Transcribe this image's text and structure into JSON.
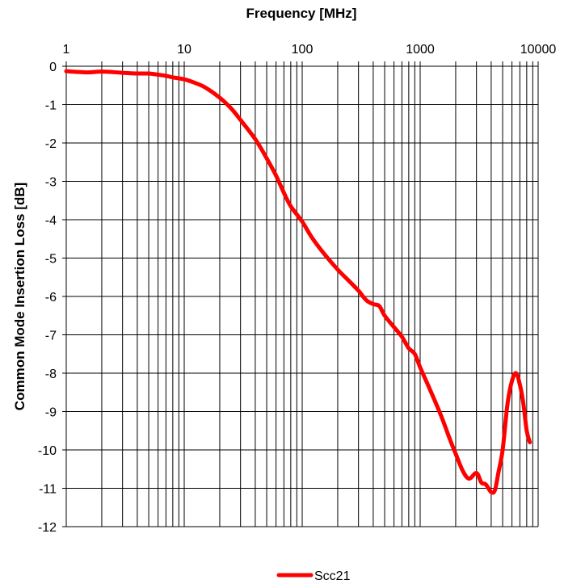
{
  "chart_data": {
    "type": "line",
    "xlabel": "Frequency [MHz]",
    "ylabel": "Common Mode Insertion Loss [dB]",
    "x_scale": "log",
    "x_axis_position": "top",
    "xlim": [
      1,
      10000
    ],
    "ylim": [
      -12,
      0
    ],
    "x_ticks": [
      1,
      10,
      100,
      1000,
      10000
    ],
    "x_tick_labels": [
      "1",
      "10",
      "100",
      "1000",
      "10000"
    ],
    "y_ticks": [
      0,
      -1,
      -2,
      -3,
      -4,
      -5,
      -6,
      -7,
      -8,
      -9,
      -10,
      -11,
      -12
    ],
    "y_tick_labels": [
      "0",
      "-1",
      "-2",
      "-3",
      "-4",
      "-5",
      "-6",
      "-7",
      "-8",
      "-9",
      "-10",
      "-11",
      "-12"
    ],
    "grid": true,
    "legend_position": "bottom-center",
    "series": [
      {
        "name": "Scc21",
        "color": "#ff0000",
        "x": [
          1,
          1.5,
          2,
          3,
          4,
          5,
          6,
          7,
          8,
          10,
          12,
          15,
          20,
          25,
          30,
          40,
          50,
          60,
          70,
          80,
          100,
          120,
          150,
          200,
          250,
          300,
          350,
          400,
          450,
          500,
          600,
          700,
          800,
          900,
          1000,
          1200,
          1500,
          1800,
          2000,
          2300,
          2600,
          3000,
          3300,
          3600,
          4000,
          4300,
          4600,
          5000,
          5500,
          6000,
          6500,
          7000,
          7500,
          8000,
          8500
        ],
        "y": [
          -0.13,
          -0.16,
          -0.14,
          -0.17,
          -0.19,
          -0.19,
          -0.22,
          -0.25,
          -0.29,
          -0.34,
          -0.42,
          -0.55,
          -0.82,
          -1.1,
          -1.4,
          -1.9,
          -2.4,
          -2.85,
          -3.3,
          -3.65,
          -4.05,
          -4.45,
          -4.85,
          -5.3,
          -5.6,
          -5.85,
          -6.1,
          -6.2,
          -6.25,
          -6.5,
          -6.8,
          -7.05,
          -7.35,
          -7.5,
          -7.85,
          -8.4,
          -9.1,
          -9.75,
          -10.1,
          -10.55,
          -10.75,
          -10.6,
          -10.85,
          -10.9,
          -11.1,
          -11.05,
          -10.6,
          -10,
          -8.8,
          -8.2,
          -8.0,
          -8.3,
          -8.8,
          -9.5,
          -9.8
        ]
      }
    ]
  }
}
